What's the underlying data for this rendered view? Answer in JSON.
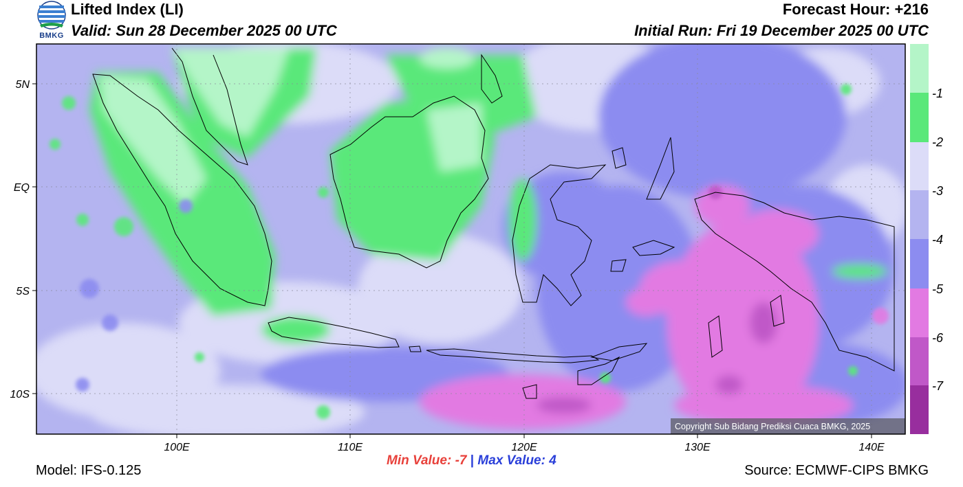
{
  "header": {
    "title": "Lifted Index (LI)",
    "valid": "Valid: Sun 28 December 2025 00 UTC",
    "forecast_hour": "Forecast Hour: +216",
    "initial_run": "Initial Run: Fri 19 December 2025 00 UTC",
    "logo_text": "BMKG"
  },
  "footer": {
    "model": "Model: IFS-0.125",
    "source": "Source: ECMWF-CIPS BMKG",
    "min_label": "Min Value:",
    "min_value": "-7",
    "separator": "|",
    "max_label": "Max Value:",
    "max_value": "4"
  },
  "map": {
    "copyright": "Copyright Sub Bidang Prediksi Cuaca BMKG, 2025",
    "lat_labels": [
      "5N",
      "EQ",
      "5S",
      "10S"
    ],
    "lon_labels": [
      "100E",
      "110E",
      "120E",
      "130E",
      "140E"
    ],
    "colors": {
      "above_minus1": "#b4f5c8",
      "minus1_minus2": "#5ae87a",
      "minus2_minus3": "#dcdcf8",
      "minus3_minus4": "#b4b4f0",
      "minus4_minus5": "#8c8cf0",
      "minus5_minus6": "#e27ae2",
      "minus6_minus7": "#c058c8",
      "below_minus7": "#982e9e"
    }
  },
  "colorbar": {
    "labels": [
      "-1",
      "-2",
      "-3",
      "-4",
      "-5",
      "-6",
      "-7"
    ]
  }
}
